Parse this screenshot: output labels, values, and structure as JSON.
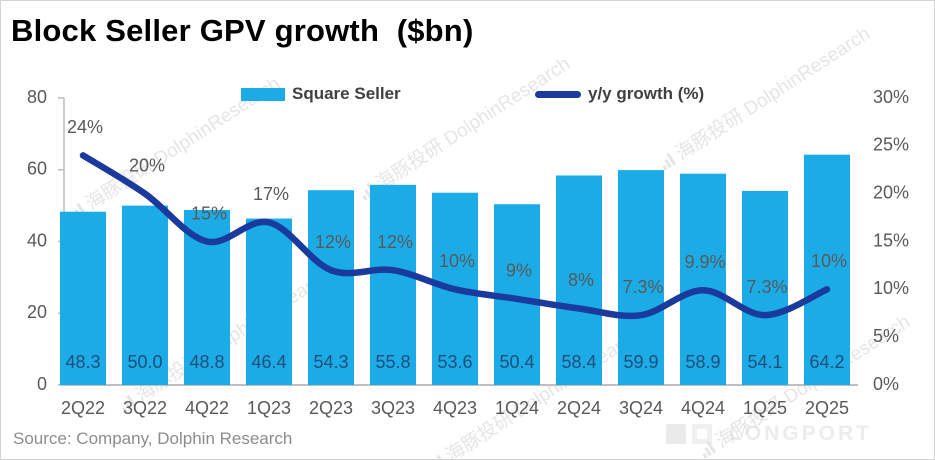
{
  "title": "Block Seller GPV growth  ($bn)",
  "source_note": "Source: Company, Dolphin Research",
  "watermark": {
    "text": "海豚投研 DolphinResearch",
    "logo_text": "LONGPORT"
  },
  "colors": {
    "bar": "#1BACE8",
    "line": "#1A3A9E",
    "bar_label": "#1F4E79",
    "axis_text": "#595959",
    "axis_line": "#bfbfbf",
    "title": "#000000"
  },
  "legend": [
    {
      "label": "Square Seller",
      "type": "bar"
    },
    {
      "label": "y/y growth (%)",
      "type": "line"
    }
  ],
  "chart_data": {
    "type": "bar+line",
    "title": "Block Seller GPV growth  ($bn)",
    "categories": [
      "2Q22",
      "3Q22",
      "4Q22",
      "1Q23",
      "2Q23",
      "3Q23",
      "4Q23",
      "1Q24",
      "2Q24",
      "3Q24",
      "4Q24",
      "1Q25",
      "2Q25"
    ],
    "series": [
      {
        "name": "Square Seller",
        "type": "bar",
        "axis": "left",
        "values": [
          48.3,
          50.0,
          48.8,
          46.4,
          54.3,
          55.8,
          53.6,
          50.4,
          58.4,
          59.9,
          58.9,
          54.1,
          64.2
        ],
        "labels": [
          "48.3",
          "50.0",
          "48.8",
          "46.4",
          "54.3",
          "55.8",
          "53.6",
          "50.4",
          "58.4",
          "59.9",
          "58.9",
          "54.1",
          "64.2"
        ]
      },
      {
        "name": "y/y growth (%)",
        "type": "line",
        "axis": "right",
        "values": [
          24,
          20,
          15,
          17,
          12,
          12,
          10,
          9,
          8,
          7.3,
          9.9,
          7.3,
          10
        ],
        "labels": [
          "24%",
          "20%",
          "15%",
          "17%",
          "12%",
          "12%",
          "10%",
          "9%",
          "8%",
          "7.3%",
          "9.9%",
          "7.3%",
          "10%"
        ]
      }
    ],
    "left_axis": {
      "ticks": [
        "80",
        "60",
        "40",
        "20",
        "0"
      ],
      "range": [
        0,
        80
      ]
    },
    "right_axis": {
      "ticks": [
        "30%",
        "25%",
        "20%",
        "15%",
        "10%",
        "5%",
        "0%"
      ],
      "range": [
        0,
        30
      ]
    },
    "grid": false,
    "legend_position": "top"
  }
}
